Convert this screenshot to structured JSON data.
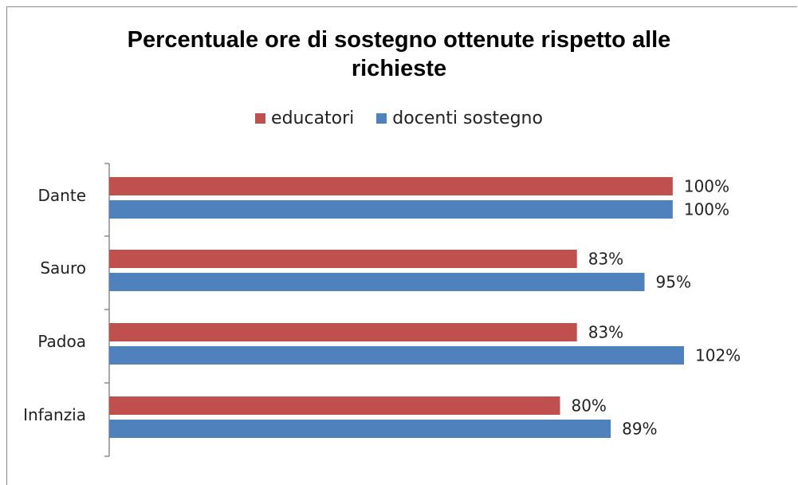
{
  "chart_data": {
    "type": "bar",
    "orientation": "horizontal",
    "title": "Percentuale ore di sostegno  ottenute rispetto alle richieste",
    "title_lines": [
      "Percentuale ore di sostegno  ottenute rispetto alle",
      "richieste"
    ],
    "categories": [
      "Dante",
      "Sauro",
      "Padoa",
      "Infanzia"
    ],
    "series": [
      {
        "name": "educatori",
        "color": "#c0504d",
        "values": [
          100,
          83,
          83,
          80
        ],
        "labels": [
          "100%",
          "83%",
          "83%",
          "80%"
        ]
      },
      {
        "name": "docenti sostegno",
        "color": "#4f81bd",
        "values": [
          100,
          95,
          102,
          89
        ],
        "labels": [
          "100%",
          "95%",
          "102%",
          "89%"
        ]
      }
    ],
    "xlim": [
      0,
      102
    ],
    "legend": "top",
    "grid": false,
    "xlabel": "",
    "ylabel": ""
  }
}
